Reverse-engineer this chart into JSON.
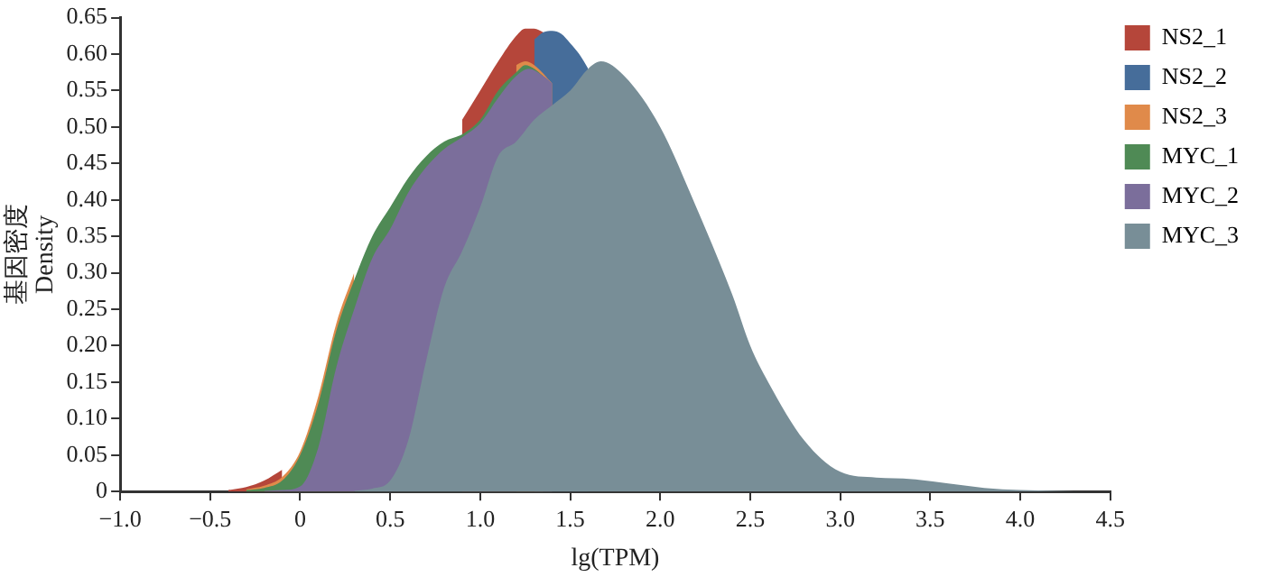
{
  "chart_data": {
    "type": "area",
    "xlabel": "lg(TPM)",
    "ylabel": "基因密度\nDensity",
    "legend": "top right",
    "grid": false,
    "xlim": [
      -1.0,
      4.5
    ],
    "xticks": [
      {
        "value": -1,
        "label": "−1.0"
      },
      {
        "value": -0.5,
        "label": "−0.5"
      },
      0,
      0.5,
      {
        "value": 1,
        "label": "1.0"
      },
      1.5,
      {
        "value": 2,
        "label": "2.0"
      },
      2.5,
      {
        "value": 3,
        "label": "3.0"
      },
      3.5,
      {
        "value": 4,
        "label": "4.0"
      },
      4.5
    ],
    "ylim": [
      0,
      0.65
    ],
    "yticks": [
      0,
      0.05,
      {
        "value": 0.1,
        "label": "0.10"
      },
      0.15,
      {
        "value": 0.2,
        "label": "0.20"
      },
      0.25,
      {
        "value": 0.3,
        "label": "0.30"
      },
      0.35,
      {
        "value": 0.4,
        "label": "0.40"
      },
      0.45,
      {
        "value": 0.5,
        "label": "0.50"
      },
      0.55,
      {
        "value": 0.6,
        "label": "0.60"
      },
      0.65
    ],
    "series": [
      {
        "name": "NS2_1",
        "color": "#b5463a",
        "x": [
          -0.4,
          -0.3,
          -0.2,
          -0.1,
          0.4,
          0.9,
          1.0,
          1.1,
          1.2,
          1.25,
          1.3,
          1.35
        ],
        "values": [
          0.002,
          0.006,
          0.015,
          0.03,
          null,
          0.51,
          0.55,
          0.59,
          0.625,
          0.635,
          0.635,
          0.63
        ]
      },
      {
        "name": "NS2_2",
        "color": "#466d9a",
        "x": [
          1.3,
          1.35,
          1.4,
          1.45,
          1.5,
          1.55,
          1.6
        ],
        "values": [
          0.62,
          0.63,
          0.632,
          0.628,
          0.615,
          0.6,
          0.58
        ]
      },
      {
        "name": "NS2_3",
        "color": "#e08a4a",
        "x": [
          -0.3,
          -0.2,
          -0.1,
          0,
          0.1,
          0.2,
          0.3,
          0.7,
          1.2,
          1.25,
          1.3,
          1.4
        ],
        "values": [
          0.003,
          0.008,
          0.02,
          0.055,
          0.13,
          0.23,
          0.3,
          null,
          0.585,
          0.59,
          0.585,
          0.56
        ]
      },
      {
        "name": "MYC_1",
        "color": "#4f8a55",
        "x": [
          -0.3,
          -0.2,
          -0.1,
          0,
          0.1,
          0.2,
          0.3,
          0.4,
          0.5,
          0.6,
          0.7,
          0.8,
          0.9,
          1.0,
          1.1,
          1.2,
          1.25,
          1.3,
          1.35
        ],
        "values": [
          0.002,
          0.005,
          0.015,
          0.05,
          0.12,
          0.22,
          0.29,
          0.35,
          0.39,
          0.43,
          0.46,
          0.48,
          0.49,
          0.51,
          0.55,
          0.575,
          0.585,
          0.58,
          0.57
        ]
      },
      {
        "name": "MYC_2",
        "color": "#7b6e9b",
        "x": [
          -0.2,
          -0.1,
          0,
          0.1,
          0.2,
          0.3,
          0.4,
          0.5,
          0.6,
          0.7,
          0.8,
          0.9,
          1.0,
          1.1,
          1.2,
          1.27,
          1.35,
          1.4
        ],
        "values": [
          0.001,
          0.002,
          0.007,
          0.06,
          0.17,
          0.25,
          0.32,
          0.36,
          0.41,
          0.445,
          0.47,
          0.486,
          0.505,
          0.54,
          0.57,
          0.58,
          0.57,
          0.56
        ]
      },
      {
        "name": "MYC_3",
        "color": "#788e97",
        "x": [
          0.3,
          0.4,
          0.5,
          0.6,
          0.7,
          0.8,
          0.9,
          1.0,
          1.1,
          1.2,
          1.3,
          1.4,
          1.5,
          1.6,
          1.67,
          1.8,
          2.0,
          2.2,
          2.4,
          2.5,
          2.6,
          2.8,
          3.0,
          3.2,
          3.4,
          3.6,
          3.8,
          4.0,
          4.2,
          4.4
        ],
        "values": [
          0.001,
          0.004,
          0.015,
          0.07,
          0.18,
          0.28,
          0.33,
          0.39,
          0.46,
          0.48,
          0.51,
          0.53,
          0.55,
          0.58,
          0.59,
          0.57,
          0.5,
          0.39,
          0.27,
          0.2,
          0.15,
          0.07,
          0.027,
          0.019,
          0.017,
          0.011,
          0.005,
          0.002,
          0.001,
          0
        ]
      }
    ]
  }
}
